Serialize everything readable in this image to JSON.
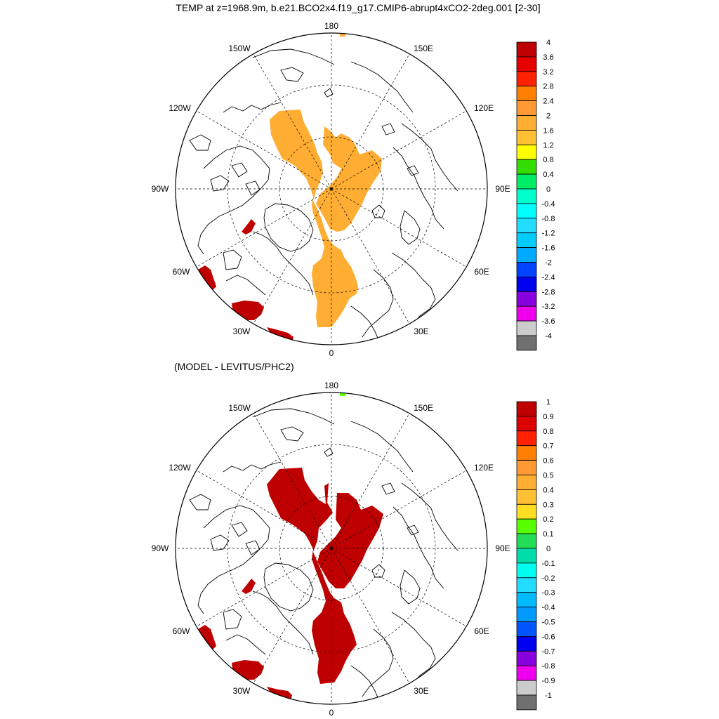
{
  "title": "TEMP at z=1968.9m, b.e21.BCO2x4.f19_g17.CMIP6-abrupt4xCO2-2deg.001 [2-30]",
  "bottom_title": "(MODEL - LEVITUS/PHC2)",
  "longitude_labels": {
    "lon_180": "180",
    "lon_150e": "150E",
    "lon_120e": "120E",
    "lon_90e": "90E",
    "lon_60e": "60E",
    "lon_30e": "30E",
    "lon_0": "0",
    "lon_30w": "30W",
    "lon_60w": "60W",
    "lon_90w": "90W",
    "lon_120w": "120W",
    "lon_150w": "150W"
  },
  "top_colorbar": {
    "labels": [
      "4",
      "3.6",
      "3.2",
      "2.8",
      "2.4",
      "2",
      "1.6",
      "1.2",
      "0.8",
      "0.4",
      "0",
      "-0.4",
      "-0.8",
      "-1.2",
      "-1.6",
      "-2",
      "-2.4",
      "-2.8",
      "-3.2",
      "-3.6",
      "-4"
    ],
    "colors": [
      "#bf0000",
      "#e60000",
      "#ff2200",
      "#ff7f00",
      "#ff9933",
      "#ffad33",
      "#ffc033",
      "#ffff00",
      "#33dd00",
      "#00ee66",
      "#00ffcc",
      "#00ffff",
      "#22ddff",
      "#00ccff",
      "#00aaff",
      "#0044ff",
      "#0000ee",
      "#8800dd",
      "#ee00ee",
      "#cccccc",
      "#707070"
    ]
  },
  "bottom_colorbar": {
    "labels": [
      "1",
      "0.9",
      "0.8",
      "0.7",
      "0.6",
      "0.5",
      "0.4",
      "0.3",
      "0.2",
      "0.1",
      "0",
      "-0.1",
      "-0.2",
      "-0.3",
      "-0.4",
      "-0.5",
      "-0.6",
      "-0.7",
      "-0.8",
      "-0.9",
      "-1"
    ],
    "colors": [
      "#bf0000",
      "#dd0000",
      "#ff2200",
      "#ff7f00",
      "#ff9933",
      "#ffad33",
      "#ffc033",
      "#ffdd22",
      "#55ff00",
      "#22dd55",
      "#00ddaa",
      "#00ffee",
      "#22ddff",
      "#00bbff",
      "#0099ff",
      "#0055ff",
      "#0000ee",
      "#8800dd",
      "#ee00ee",
      "#cccccc",
      "#707070"
    ]
  },
  "anomaly_colors": {
    "top_fill": "#ffad33",
    "bottom_fill": "#bf0000",
    "warm_patch": "#bf0000",
    "top_speck": "#ffad33",
    "bottom_speck": "#55ff00"
  }
}
